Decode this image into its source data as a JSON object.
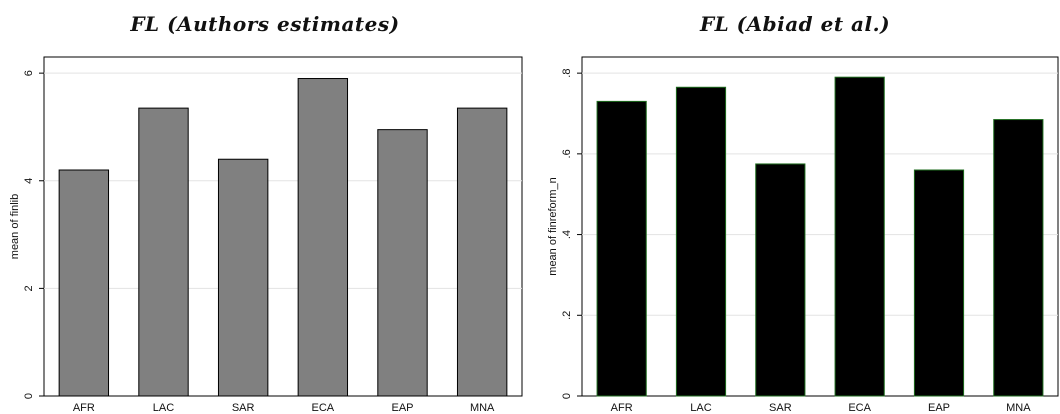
{
  "chart_data": [
    {
      "type": "bar",
      "title": "FL (Authors estimates)",
      "xlabel": "",
      "ylabel": "mean of finlib",
      "categories": [
        "AFR",
        "LAC",
        "SAR",
        "ECA",
        "EAP",
        "MNA"
      ],
      "values": [
        4.2,
        5.35,
        4.4,
        5.9,
        4.95,
        5.35
      ],
      "ylim": [
        0,
        6.3
      ],
      "yticks": [
        0,
        2,
        4,
        6
      ],
      "ytick_labels": [
        "0",
        "2",
        "4",
        "6"
      ],
      "bar_color": "#808080",
      "bar_edge": "#000000",
      "grid": true
    },
    {
      "type": "bar",
      "title": "FL (Abiad et al.)",
      "xlabel": "",
      "ylabel": "mean of finreform_n",
      "categories": [
        "AFR",
        "LAC",
        "SAR",
        "ECA",
        "EAP",
        "MNA"
      ],
      "values": [
        0.73,
        0.765,
        0.575,
        0.79,
        0.56,
        0.685
      ],
      "ylim": [
        0,
        0.84
      ],
      "yticks": [
        0,
        0.2,
        0.4,
        0.6,
        0.8
      ],
      "ytick_labels": [
        "0",
        ".2",
        ".4",
        ".6",
        ".8"
      ],
      "bar_color": "#000000",
      "bar_edge": "#1e6b1e",
      "grid": true
    }
  ]
}
